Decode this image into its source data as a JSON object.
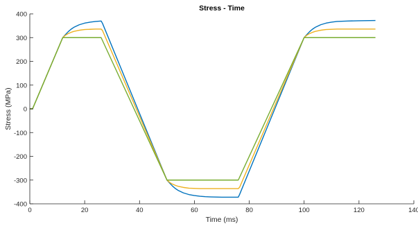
{
  "chart_data": {
    "type": "line",
    "title": "Stress - Time",
    "xlabel": "Time (ms)",
    "ylabel": "Stress (MPa)",
    "xlim": [
      0,
      140
    ],
    "ylim": [
      -400,
      400
    ],
    "xticks": [
      0,
      20,
      40,
      60,
      80,
      100,
      120,
      140
    ],
    "yticks": [
      -400,
      -300,
      -200,
      -100,
      0,
      100,
      200,
      300,
      400
    ],
    "grid": false,
    "series": [
      {
        "color": "#0072BD",
        "x": [
          0,
          1,
          12,
          13,
          14,
          15,
          16,
          18,
          20,
          22,
          24,
          26,
          26.5,
          50,
          51,
          52,
          53,
          54,
          56,
          58,
          60,
          62,
          64,
          66,
          70,
          74,
          76,
          76.5,
          100,
          101,
          102,
          103,
          104,
          106,
          108,
          110,
          112,
          116,
          120,
          126
        ],
        "y": [
          0,
          0,
          300,
          313,
          325,
          335,
          343,
          354,
          361,
          365,
          368,
          370,
          360,
          -300,
          -313,
          -325,
          -335,
          -343,
          -354,
          -361,
          -365,
          -368,
          -370,
          -371,
          -372,
          -372,
          -372,
          -360,
          300,
          313,
          325,
          335,
          343,
          354,
          361,
          365,
          368,
          370,
          371,
          372
        ]
      },
      {
        "color": "#EDB120",
        "x": [
          0,
          1,
          12,
          13,
          14,
          15,
          16,
          18,
          20,
          22,
          24,
          26,
          26.5,
          50,
          51,
          52,
          53,
          54,
          56,
          58,
          62,
          66,
          70,
          76,
          76.5,
          100,
          101,
          102,
          103,
          104,
          106,
          108,
          112,
          116,
          120,
          126
        ],
        "y": [
          0,
          0,
          300,
          310,
          317,
          322,
          326,
          331,
          334,
          335,
          336,
          336,
          330,
          -300,
          -310,
          -317,
          -322,
          -326,
          -331,
          -334,
          -336,
          -336,
          -336,
          -336,
          -330,
          300,
          310,
          317,
          322,
          326,
          331,
          334,
          336,
          336,
          336,
          336
        ]
      },
      {
        "color": "#77AC30",
        "x": [
          0,
          1,
          12,
          26,
          50,
          76,
          100,
          126
        ],
        "y": [
          0,
          0,
          300,
          300,
          -300,
          -300,
          300,
          300
        ]
      }
    ]
  }
}
